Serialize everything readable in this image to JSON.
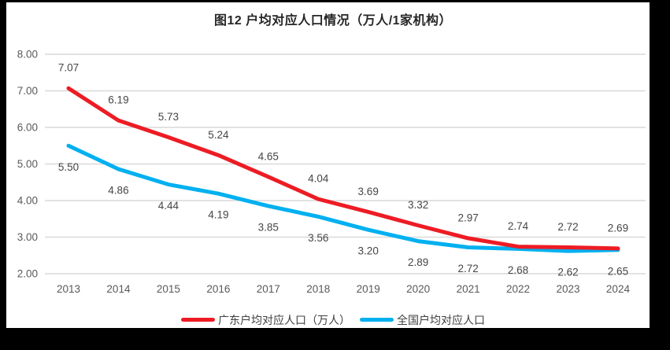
{
  "chart_data": {
    "type": "line",
    "title": "图12 户均对应人口情况（万人/1家机构）",
    "categories": [
      "2013",
      "2014",
      "2015",
      "2016",
      "2017",
      "2018",
      "2019",
      "2020",
      "2021",
      "2022",
      "2023",
      "2024"
    ],
    "series": [
      {
        "name": "广东户均对应人口（万人）",
        "color": "#ED1C24",
        "label_position": "above",
        "values": [
          7.07,
          6.19,
          5.73,
          5.24,
          4.65,
          4.04,
          3.69,
          3.32,
          2.97,
          2.74,
          2.72,
          2.69
        ]
      },
      {
        "name": "全国户均对应人口",
        "color": "#00B0F0",
        "label_position": "below",
        "values": [
          5.5,
          4.86,
          4.44,
          4.19,
          3.85,
          3.56,
          3.2,
          2.89,
          2.72,
          2.68,
          2.62,
          2.65
        ]
      }
    ],
    "y_axis": {
      "min": 2.0,
      "max": 8.0,
      "step": 1.0,
      "tick_values": [
        8,
        7,
        6,
        5,
        4,
        3,
        2
      ],
      "tick_labels": [
        "8.00",
        "7.00",
        "6.00",
        "5.00",
        "4.00",
        "3.00",
        "2.00"
      ]
    },
    "x_axis": {
      "label": ""
    },
    "grid": "horizontal",
    "legend_position": "bottom",
    "colors": {
      "gridline": "#D9D9D9",
      "axis_text": "#595959",
      "data_label_text": "#454545",
      "title_text": "#262626",
      "frame": "#000000",
      "background": "#FFFFFF"
    }
  }
}
